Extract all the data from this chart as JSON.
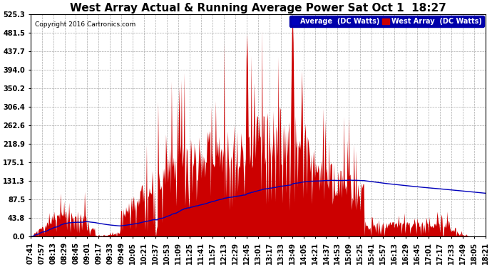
{
  "title": "West Array Actual & Running Average Power Sat Oct 1  18:27",
  "copyright": "Copyright 2016 Cartronics.com",
  "legend_avg": "Average  (DC Watts)",
  "legend_west": "West Array  (DC Watts)",
  "ylabel_ticks": [
    0.0,
    43.8,
    87.5,
    131.3,
    175.1,
    218.9,
    262.6,
    306.4,
    350.2,
    394.0,
    437.7,
    481.5,
    525.3
  ],
  "ymax": 525.3,
  "ymin": 0.0,
  "background_color": "#ffffff",
  "plot_bg_color": "#ffffff",
  "grid_color": "#aaaaaa",
  "red_color": "#cc0000",
  "blue_color": "#0000bb",
  "title_fontsize": 11,
  "tick_fontsize": 7,
  "xtick_labels": [
    "07:41",
    "07:57",
    "08:13",
    "08:29",
    "08:45",
    "09:01",
    "09:17",
    "09:33",
    "09:49",
    "10:05",
    "10:21",
    "10:37",
    "10:53",
    "11:09",
    "11:25",
    "11:41",
    "11:57",
    "12:13",
    "12:29",
    "12:45",
    "13:01",
    "13:17",
    "13:33",
    "13:49",
    "14:05",
    "14:21",
    "14:37",
    "14:53",
    "15:09",
    "15:25",
    "15:41",
    "15:57",
    "16:13",
    "16:29",
    "16:45",
    "17:01",
    "17:17",
    "17:33",
    "17:49",
    "18:05",
    "18:21"
  ],
  "n_xticks": 41
}
